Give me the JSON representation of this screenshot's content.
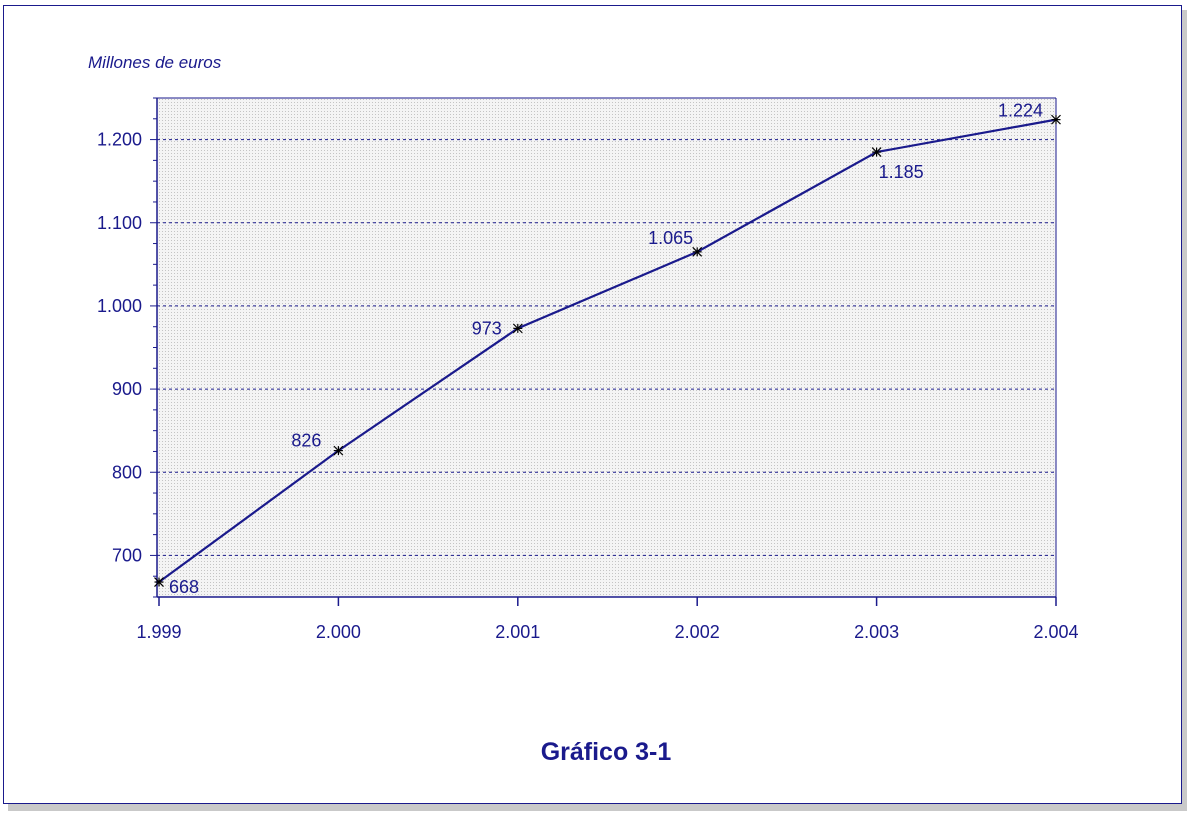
{
  "chart_data": {
    "type": "line",
    "title": "",
    "ylabel": "Millones de euros",
    "xlabel": "",
    "caption": "Gráfico 3-1",
    "categories": [
      "1.999",
      "2.000",
      "2.001",
      "2.002",
      "2.003",
      "2.004"
    ],
    "series": [
      {
        "values": [
          668,
          826,
          973,
          1065,
          1185,
          1224
        ]
      }
    ],
    "data_labels": [
      "668",
      "826",
      "973",
      "1.065",
      "1.185",
      "1.224"
    ],
    "y_ticks": [
      700,
      800,
      900,
      1000,
      1100,
      1200
    ],
    "y_tick_labels": [
      "700",
      "800",
      "900",
      "1.000",
      "1.100",
      "1.200"
    ],
    "ylim": [
      650,
      1250
    ],
    "grid": true,
    "colors": {
      "line": "#1a1a8c",
      "axis": "#1a1a8c",
      "text": "#1a1a8c",
      "plot_bg": "#e6e6e6",
      "marker": "#000000"
    }
  }
}
